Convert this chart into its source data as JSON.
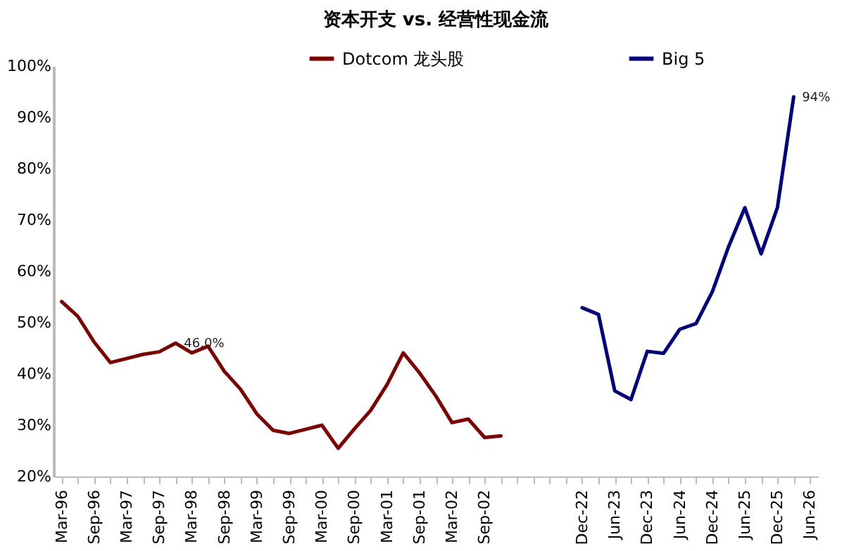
{
  "chart_data": {
    "type": "line",
    "title": "资本开支 vs. 经营性现金流",
    "categories": [
      "Mar-96",
      null,
      "Sep-96",
      null,
      "Mar-97",
      null,
      "Sep-97",
      null,
      "Mar-98",
      null,
      "Sep-98",
      null,
      "Mar-99",
      null,
      "Sep-99",
      null,
      "Mar-00",
      null,
      "Sep-00",
      null,
      "Mar-01",
      null,
      "Sep-01",
      null,
      "Mar-02",
      null,
      "Sep-02",
      null,
      null,
      null,
      null,
      null,
      "Dec-22",
      null,
      "Jun-23",
      null,
      "Dec-23",
      null,
      "Jun-24",
      null,
      "Dec-24",
      null,
      "Jun-25",
      null,
      "Dec-25",
      null,
      "Jun-26"
    ],
    "series": [
      {
        "name": "Dotcom 龙头股",
        "color": "#7f0000",
        "values": [
          54.1,
          51.2,
          46.2,
          42.2,
          43.0,
          43.8,
          44.3,
          46.0,
          44.1,
          45.4,
          40.5,
          37.0,
          32.2,
          29.0,
          28.4,
          29.2,
          30.0,
          25.5,
          29.3,
          32.9,
          37.9,
          44.1,
          40.2,
          35.7,
          30.5,
          31.2,
          27.6,
          27.9,
          null,
          null,
          null,
          null,
          null,
          null,
          null,
          null,
          null,
          null,
          null,
          null,
          null,
          null,
          null,
          null,
          null,
          null,
          null
        ],
        "value_labels": [
          null,
          null,
          null,
          null,
          null,
          null,
          null,
          "46.0%",
          null,
          null,
          null,
          null,
          null,
          null,
          null,
          null,
          null,
          null,
          null,
          null,
          null,
          null,
          null,
          null,
          null,
          null,
          null,
          null,
          null,
          null,
          null,
          null,
          null,
          null,
          null,
          null,
          null,
          null,
          null,
          null,
          null,
          null,
          null,
          null,
          null,
          null,
          null
        ]
      },
      {
        "name": "Big 5",
        "color": "#000080",
        "values": [
          null,
          null,
          null,
          null,
          null,
          null,
          null,
          null,
          null,
          null,
          null,
          null,
          null,
          null,
          null,
          null,
          null,
          null,
          null,
          null,
          null,
          null,
          null,
          null,
          null,
          null,
          null,
          null,
          null,
          null,
          null,
          null,
          52.9,
          51.6,
          36.7,
          35.0,
          44.4,
          44.0,
          48.7,
          49.8,
          56.0,
          64.8,
          72.4,
          63.4,
          72.4,
          94,
          null
        ],
        "value_labels": [
          null,
          null,
          null,
          null,
          null,
          null,
          null,
          null,
          null,
          null,
          null,
          null,
          null,
          null,
          null,
          null,
          null,
          null,
          null,
          null,
          null,
          null,
          null,
          null,
          null,
          null,
          null,
          null,
          null,
          null,
          null,
          null,
          null,
          null,
          null,
          null,
          null,
          null,
          null,
          null,
          null,
          null,
          null,
          null,
          null,
          "94%",
          null
        ]
      }
    ],
    "ylim": [
      20,
      100
    ],
    "yticks": [
      {
        "value": 20,
        "label": "20%"
      },
      {
        "value": 30,
        "label": "30%"
      },
      {
        "value": 40,
        "label": "40%"
      },
      {
        "value": 50,
        "label": "50%"
      },
      {
        "value": 60,
        "label": "60%"
      },
      {
        "value": 70,
        "label": "70%"
      },
      {
        "value": 80,
        "label": "80%"
      },
      {
        "value": 90,
        "label": "90%"
      },
      {
        "value": 100,
        "label": "100%"
      }
    ],
    "grid": false,
    "legend": "top",
    "marker": "none",
    "line_style": "solid"
  }
}
